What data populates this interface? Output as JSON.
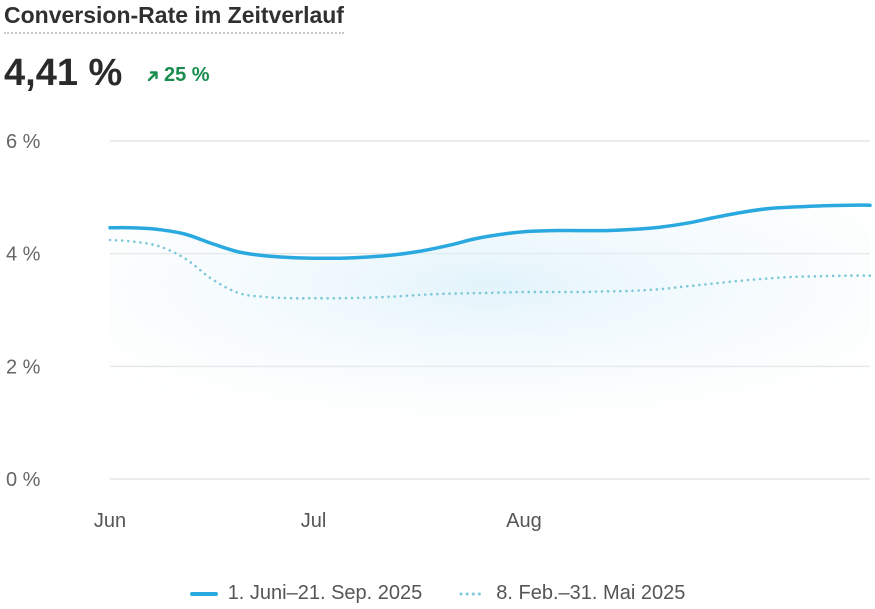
{
  "header": {
    "title": "Conversion-Rate im Zeitverlauf",
    "metric_value": "4,41 %",
    "delta_value": "25 %",
    "delta_icon": "arrow-up-right-icon",
    "delta_color": "#1a8d4e"
  },
  "chart_data": {
    "type": "line",
    "title": "Conversion-Rate im Zeitverlauf",
    "xlabel": "",
    "ylabel": "",
    "ylim": [
      0,
      6
    ],
    "y_ticks": [
      0,
      2,
      4,
      6
    ],
    "y_tick_labels": [
      "0 %",
      "2 %",
      "4 %",
      "6 %"
    ],
    "x_tick_labels": [
      "Jun",
      "Jul",
      "Aug"
    ],
    "grid": true,
    "legend_position": "bottom",
    "series": [
      {
        "name": "1. Juni–21. Sep. 2025",
        "style": "solid",
        "color": "#29a9df",
        "x": [
          "2025-06-01",
          "2025-06-04",
          "2025-06-08",
          "2025-06-12",
          "2025-06-16",
          "2025-06-20",
          "2025-06-24",
          "2025-06-28",
          "2025-07-01",
          "2025-07-05",
          "2025-07-09",
          "2025-07-13",
          "2025-07-17",
          "2025-07-21",
          "2025-07-25",
          "2025-07-29",
          "2025-08-01",
          "2025-08-05",
          "2025-08-09",
          "2025-08-13",
          "2025-08-17",
          "2025-08-21",
          "2025-08-25",
          "2025-08-29",
          "2025-09-02",
          "2025-09-06",
          "2025-09-10",
          "2025-09-14",
          "2025-09-18",
          "2025-09-21"
        ],
        "y": [
          4.46,
          4.46,
          4.43,
          4.35,
          4.18,
          4.03,
          3.96,
          3.93,
          3.92,
          3.92,
          3.94,
          3.98,
          4.05,
          4.15,
          4.27,
          4.35,
          4.39,
          4.41,
          4.41,
          4.41,
          4.43,
          4.47,
          4.54,
          4.64,
          4.73,
          4.8,
          4.83,
          4.85,
          4.86,
          4.86
        ]
      },
      {
        "name": "8. Feb.–31. Mai 2025",
        "style": "dotted",
        "color": "#7fc8d8",
        "x": [
          "2025-06-01",
          "2025-06-04",
          "2025-06-08",
          "2025-06-12",
          "2025-06-16",
          "2025-06-20",
          "2025-06-24",
          "2025-06-28",
          "2025-07-01",
          "2025-07-05",
          "2025-07-09",
          "2025-07-13",
          "2025-07-17",
          "2025-07-21",
          "2025-07-25",
          "2025-07-29",
          "2025-08-01",
          "2025-08-05",
          "2025-08-09",
          "2025-08-13",
          "2025-08-17",
          "2025-08-21",
          "2025-08-25",
          "2025-08-29",
          "2025-09-02",
          "2025-09-06",
          "2025-09-10",
          "2025-09-14",
          "2025-09-18",
          "2025-09-21"
        ],
        "y": [
          4.24,
          4.22,
          4.14,
          3.92,
          3.55,
          3.3,
          3.23,
          3.21,
          3.21,
          3.21,
          3.22,
          3.24,
          3.27,
          3.29,
          3.3,
          3.31,
          3.32,
          3.32,
          3.32,
          3.33,
          3.34,
          3.37,
          3.42,
          3.47,
          3.52,
          3.56,
          3.59,
          3.6,
          3.61,
          3.61
        ]
      }
    ]
  },
  "legend": {
    "items": [
      {
        "label": "1. Juni–21. Sep. 2025",
        "color": "#29a9df",
        "style": "solid"
      },
      {
        "label": "8. Feb.–31. Mai 2025",
        "color": "#7fc8d8",
        "style": "dotted"
      }
    ]
  }
}
